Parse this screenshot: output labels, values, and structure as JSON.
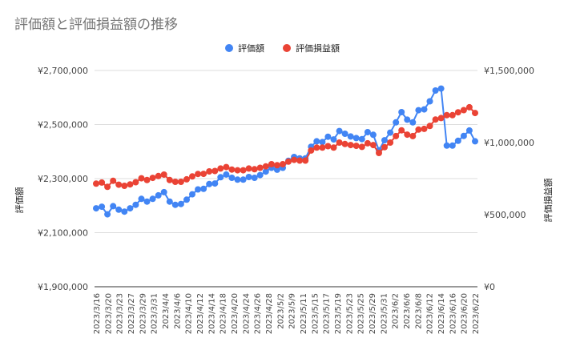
{
  "chart_data": {
    "type": "line",
    "title": "評価額と評価損益額の推移",
    "legend_position": "top",
    "grid": true,
    "left_axis": {
      "label": "評価額",
      "range": [
        1900000,
        2700000
      ],
      "ticks": [
        "¥1,900,000",
        "¥2,100,000",
        "¥2,300,000",
        "¥2,500,000",
        "¥2,700,000"
      ]
    },
    "right_axis": {
      "label": "評価損益額",
      "range": [
        0,
        1500000
      ],
      "ticks": [
        "¥0",
        "¥500,000",
        "¥1,000,000",
        "¥1,500,000"
      ]
    },
    "x_tick_labels": [
      "2023/3/16",
      "2023/3/20",
      "2023/3/23",
      "2023/3/27",
      "2023/3/29",
      "2023/3/31",
      "2023/4/4",
      "2023/4/6",
      "2023/4/10",
      "2023/4/12",
      "2023/4/14",
      "2023/4/18",
      "2023/4/20",
      "2023/4/24",
      "2023/4/26",
      "2023/4/28",
      "2023/5/2",
      "2023/5/9",
      "2023/5/11",
      "2023/5/15",
      "2023/5/17",
      "2023/5/19",
      "2023/5/23",
      "2023/5/25",
      "2023/5/29",
      "2023/5/31",
      "2023/6/2",
      "2023/6/6",
      "2023/6/8",
      "2023/6/12",
      "2023/6/14",
      "2023/6/16",
      "2023/6/20",
      "2023/6/22"
    ],
    "series": [
      {
        "name": "評価額",
        "axis": "left",
        "color": "#4285f4",
        "values": [
          2190000,
          2196000,
          2168000,
          2198000,
          2185000,
          2178000,
          2190000,
          2203000,
          2225000,
          2215000,
          2225000,
          2238000,
          2250000,
          2215000,
          2203000,
          2206000,
          2222000,
          2242000,
          2260000,
          2262000,
          2280000,
          2282000,
          2305000,
          2315000,
          2303000,
          2296000,
          2296000,
          2306000,
          2303000,
          2313000,
          2326000,
          2340000,
          2333000,
          2340000,
          2366000,
          2380000,
          2375000,
          2375000,
          2418000,
          2438000,
          2435000,
          2455000,
          2445000,
          2476000,
          2466000,
          2456000,
          2450000,
          2446000,
          2472000,
          2462000,
          2405000,
          2442000,
          2470000,
          2508000,
          2546000,
          2518000,
          2508000,
          2553000,
          2556000,
          2586000,
          2626000,
          2633000,
          2422000,
          2422000,
          2440000,
          2458000,
          2478000,
          2438000
        ]
      },
      {
        "name": "評価損益額",
        "axis": "right",
        "color": "#ea4335",
        "values": [
          715000,
          723000,
          693000,
          735000,
          708000,
          700000,
          710000,
          725000,
          752000,
          740000,
          755000,
          768000,
          778000,
          740000,
          728000,
          728000,
          745000,
          765000,
          782000,
          783000,
          800000,
          803000,
          820000,
          830000,
          813000,
          808000,
          808000,
          820000,
          815000,
          825000,
          835000,
          850000,
          843000,
          850000,
          868000,
          880000,
          875000,
          875000,
          945000,
          965000,
          965000,
          975000,
          965000,
          1000000,
          990000,
          983000,
          977000,
          970000,
          995000,
          983000,
          928000,
          968000,
          1000000,
          1045000,
          1085000,
          1055000,
          1045000,
          1090000,
          1095000,
          1115000,
          1160000,
          1170000,
          1190000,
          1190000,
          1210000,
          1225000,
          1245000,
          1205000
        ]
      }
    ]
  }
}
